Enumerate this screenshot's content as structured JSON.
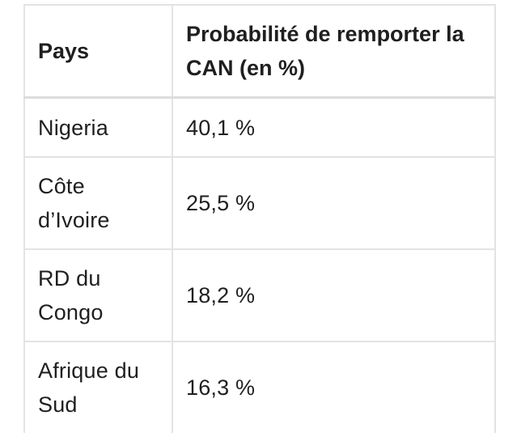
{
  "chart_data": {
    "type": "table",
    "columns": [
      "Pays",
      "Probabilité de remporter la CAN (en %)"
    ],
    "rows": [
      {
        "country": "Nigeria",
        "value_text": "40,1 %",
        "value": 40.1
      },
      {
        "country": "Côte d’Ivoire",
        "value_text": "25,5 %",
        "value": 25.5
      },
      {
        "country": "RD du Congo",
        "value_text": "18,2 %",
        "value": 18.2
      },
      {
        "country": "Afrique du Sud",
        "value_text": "16,3 %",
        "value": 16.3
      }
    ]
  }
}
